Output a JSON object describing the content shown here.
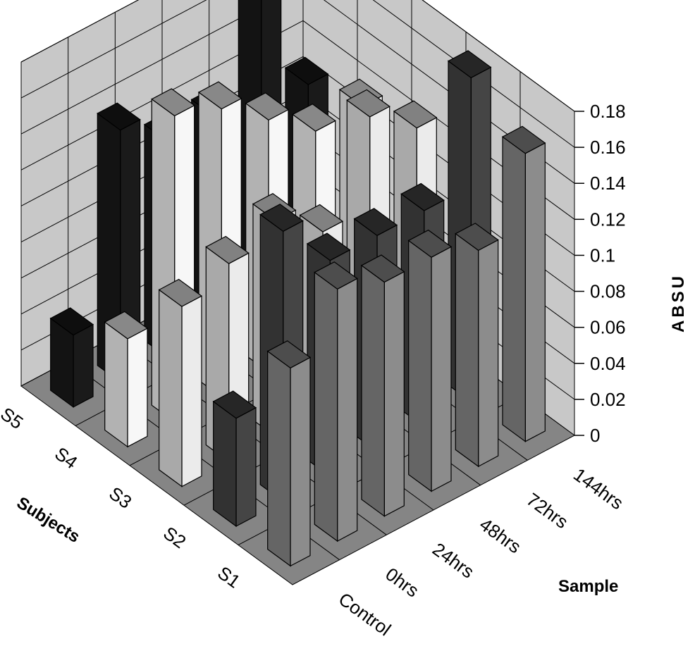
{
  "chart_data": {
    "type": "bar",
    "variant": "3d-column",
    "title": "",
    "xlabel": "Sample",
    "ylabel": "Subjects",
    "zlabel": "ABSU",
    "x_categories": [
      "Control",
      "0hrs",
      "24hrs",
      "48hrs",
      "72hrs",
      "144hrs"
    ],
    "y_categories": [
      "S1",
      "S2",
      "S3",
      "S4",
      "S5"
    ],
    "zlim": [
      0,
      0.18
    ],
    "z_ticks": [
      "0",
      "0.02",
      "0.04",
      "0.06",
      "0.08",
      "0.1",
      "0.12",
      "0.14",
      "0.16",
      "0.18"
    ],
    "grid": true,
    "series": [
      {
        "name": "S1",
        "color": "#8c8c8c",
        "values": [
          0.11,
          0.14,
          0.13,
          0.13,
          0.12,
          0.16
        ]
      },
      {
        "name": "S2",
        "color": "#454545",
        "values": [
          0.06,
          0.15,
          0.12,
          0.12,
          0.12,
          0.18
        ]
      },
      {
        "name": "S3",
        "color": "#ebebeb",
        "values": [
          0.1,
          0.11,
          0.12,
          0.1,
          0.15,
          0.13
        ]
      },
      {
        "name": "S4",
        "color": "#f7f7f7",
        "values": [
          0.06,
          0.17,
          0.16,
          0.14,
          0.12,
          0.12
        ]
      },
      {
        "name": "S5",
        "color": "#1a1a1a",
        "values": [
          0.04,
          0.14,
          0.12,
          0.12,
          0.18,
          0.11
        ]
      }
    ]
  }
}
